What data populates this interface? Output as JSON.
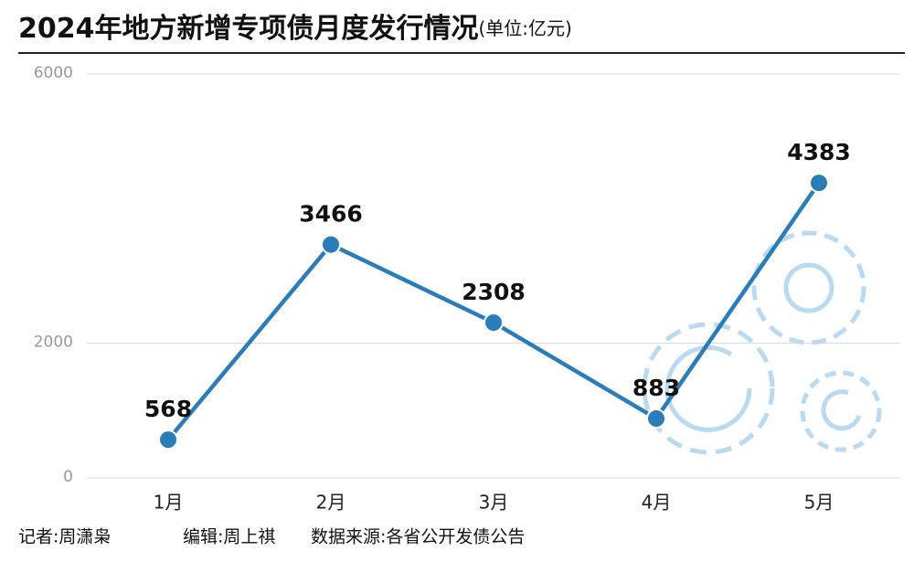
{
  "chart_data": {
    "type": "line",
    "title": "2024年地方新增专项债月度发行情况",
    "unit": "(单位:亿元)",
    "categories": [
      "1月",
      "2月",
      "3月",
      "4月",
      "5月"
    ],
    "values": [
      568,
      3466,
      2308,
      883,
      4383
    ],
    "color": "#2a7db8",
    "ylim": [
      0,
      6000
    ],
    "yticks": [
      0,
      2000,
      6000
    ],
    "grid": true
  },
  "footer": {
    "reporter": "记者:周潇枭",
    "editor": "编辑:周上祺",
    "source": "数据来源:各省公开发债公告"
  }
}
